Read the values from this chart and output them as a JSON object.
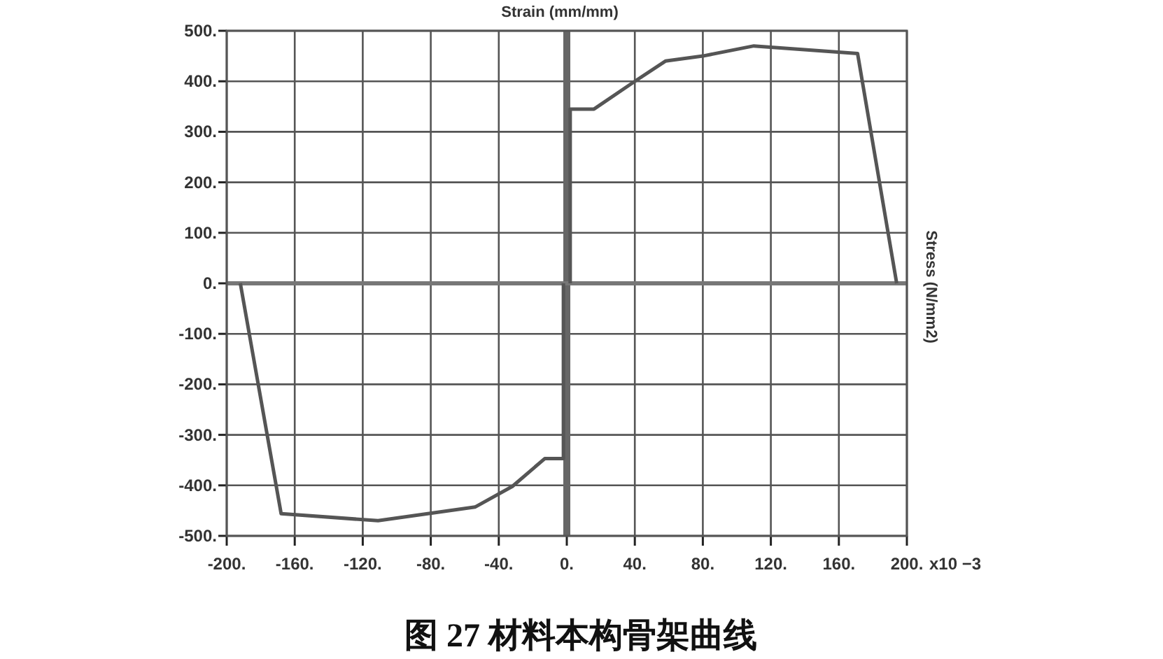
{
  "chart_data": {
    "type": "line",
    "xlabel": "Strain  (mm/mm)",
    "ylabel": "Stress  (N/mm2)",
    "title": "图 27    材料本构骨架曲线",
    "annotations": [
      "x10 −3"
    ],
    "series": [
      {
        "color": "#555555",
        "x": [
          2,
          2,
          16,
          40,
          58,
          80,
          110,
          171,
          194
        ],
        "values": [
          0,
          345,
          345,
          400,
          440,
          450,
          470,
          455,
          0
        ]
      },
      {
        "color": "#555555",
        "x": [
          -192,
          -168,
          -111,
          -54,
          -32,
          -13,
          -2,
          -2
        ],
        "values": [
          0,
          -456,
          -470,
          -443,
          -402,
          -347,
          -347,
          0
        ]
      }
    ],
    "xlim": [
      -200,
      200
    ],
    "ylim": [
      -500,
      500
    ],
    "xticks": [
      {
        "value": -200,
        "label": "-200."
      },
      {
        "value": -160,
        "label": "-160."
      },
      {
        "value": -120,
        "label": "-120."
      },
      {
        "value": -80,
        "label": "-80."
      },
      {
        "value": -40,
        "label": "-40."
      },
      {
        "value": 0,
        "label": "0."
      },
      {
        "value": 40,
        "label": "40."
      },
      {
        "value": 80,
        "label": "80."
      },
      {
        "value": 120,
        "label": "120."
      },
      {
        "value": 160,
        "label": "160."
      },
      {
        "value": 200,
        "label": "200."
      }
    ],
    "yticks": [
      {
        "value": -500,
        "label": "-500."
      },
      {
        "value": -400,
        "label": "-400."
      },
      {
        "value": -300,
        "label": "-300."
      },
      {
        "value": -200,
        "label": "-200."
      },
      {
        "value": -100,
        "label": "-100."
      },
      {
        "value": 0,
        "label": "0."
      },
      {
        "value": 100,
        "label": "100."
      },
      {
        "value": 200,
        "label": "200."
      },
      {
        "value": 300,
        "label": "300."
      },
      {
        "value": 400,
        "label": "400."
      },
      {
        "value": 500,
        "label": "500."
      }
    ],
    "grid": true,
    "marker": "none",
    "line_style": "solid",
    "ref_lines": [
      {
        "axis": "x",
        "value": 0,
        "color": "#666666"
      },
      {
        "axis": "y",
        "value": 0,
        "color": "#777777"
      }
    ]
  }
}
